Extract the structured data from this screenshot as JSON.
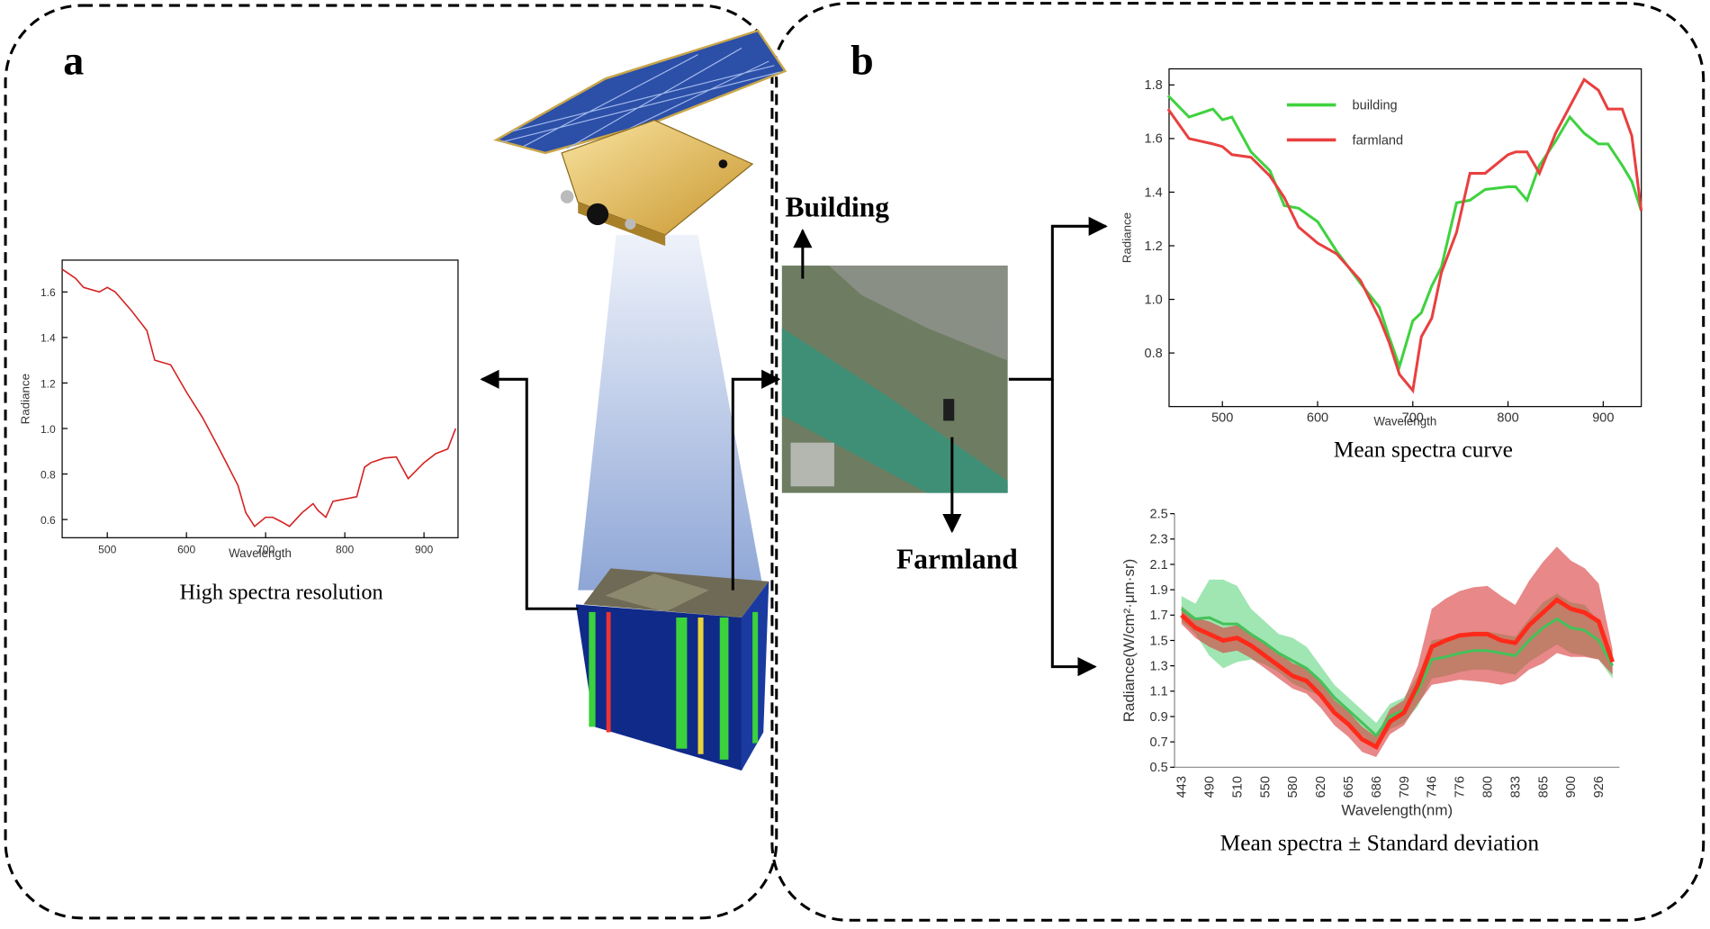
{
  "panel_labels": [
    "a",
    "b"
  ],
  "image_labels": [
    "Building",
    "Farmland"
  ],
  "chart_data": [
    {
      "type": "line",
      "caption": "High spectra resolution",
      "x_label": "Wavelength",
      "y_label": "Radiance",
      "color": "#d42020",
      "x": [
        443,
        460,
        470,
        490,
        500,
        510,
        530,
        550,
        560,
        580,
        600,
        620,
        640,
        665,
        675,
        686,
        700,
        709,
        720,
        730,
        746,
        760,
        766,
        776,
        785,
        800,
        815,
        825,
        833,
        850,
        865,
        880,
        900,
        915,
        930,
        940
      ],
      "values": [
        1.7,
        1.66,
        1.62,
        1.6,
        1.62,
        1.6,
        1.52,
        1.43,
        1.3,
        1.28,
        1.16,
        1.05,
        0.92,
        0.75,
        0.63,
        0.57,
        0.61,
        0.61,
        0.59,
        0.57,
        0.63,
        0.67,
        0.64,
        0.61,
        0.68,
        0.69,
        0.7,
        0.83,
        0.85,
        0.87,
        0.875,
        0.78,
        0.85,
        0.89,
        0.91,
        1.0
      ],
      "xlim": [
        443,
        943
      ],
      "ylim": [
        0.52,
        1.74
      ],
      "xticks": [
        500,
        600,
        700,
        800,
        900
      ],
      "yticks": [
        0.6,
        0.8,
        {
          "value": 1,
          "label": "1.0"
        },
        1.2,
        1.4,
        1.6
      ]
    },
    {
      "type": "line",
      "caption": "Mean spectra curve",
      "x_label": "Wavelength",
      "y_label": "Radiance",
      "legend": "upper-center",
      "x": [
        443,
        465,
        490,
        500,
        510,
        530,
        550,
        565,
        580,
        600,
        620,
        645,
        665,
        675,
        686,
        700,
        709,
        720,
        730,
        746,
        760,
        776,
        800,
        808,
        820,
        833,
        850,
        865,
        880,
        895,
        905,
        920,
        930,
        940
      ],
      "series": [
        {
          "name": "building",
          "color": "#3fd23f",
          "values": [
            1.76,
            1.68,
            1.71,
            1.67,
            1.68,
            1.55,
            1.48,
            1.35,
            1.34,
            1.29,
            1.18,
            1.06,
            0.97,
            0.86,
            0.75,
            0.92,
            0.95,
            1.05,
            1.12,
            1.36,
            1.37,
            1.41,
            1.42,
            1.42,
            1.37,
            1.5,
            1.59,
            1.68,
            1.62,
            1.58,
            1.58,
            1.5,
            1.44,
            1.33
          ]
        },
        {
          "name": "farmland",
          "color": "#e84040",
          "values": [
            1.71,
            1.6,
            1.58,
            1.57,
            1.54,
            1.53,
            1.46,
            1.38,
            1.27,
            1.21,
            1.17,
            1.07,
            0.93,
            0.84,
            0.72,
            0.66,
            0.86,
            0.93,
            1.1,
            1.25,
            1.47,
            1.47,
            1.54,
            1.55,
            1.55,
            1.47,
            1.62,
            1.72,
            1.82,
            1.78,
            1.71,
            1.71,
            1.61,
            1.33
          ]
        }
      ],
      "xlim": [
        444,
        940
      ],
      "ylim": [
        0.6,
        1.86
      ],
      "xticks": [
        500,
        600,
        700,
        800,
        900
      ],
      "yticks": [
        0.8,
        {
          "value": 1,
          "label": "1.0"
        },
        1.2,
        1.4,
        1.6,
        1.8
      ]
    },
    {
      "type": "band",
      "caption": "Mean spectra ± Standard deviation",
      "x_label": "Wavelength(nm)",
      "y_label": "Radiance(W/cm²·μm·sr)",
      "categories": [
        "443",
        null,
        "490",
        null,
        "510",
        null,
        "550",
        null,
        "580",
        null,
        "620",
        null,
        "665",
        null,
        "686",
        null,
        "709",
        null,
        "746",
        null,
        "776",
        null,
        "800",
        null,
        "833",
        null,
        "865",
        null,
        "900",
        null,
        "926",
        null
      ],
      "series": [
        {
          "color": "#44c25a",
          "band_color": "#5fd67f",
          "values": [
            1.75,
            1.67,
            1.68,
            1.63,
            1.63,
            1.55,
            1.48,
            1.4,
            1.34,
            1.28,
            1.18,
            1.05,
            0.95,
            0.85,
            0.75,
            0.9,
            0.95,
            1.1,
            1.35,
            1.37,
            1.4,
            1.42,
            1.42,
            1.4,
            1.38,
            1.5,
            1.6,
            1.67,
            1.6,
            1.58,
            1.5,
            1.3
          ],
          "std": [
            0.1,
            0.12,
            0.3,
            0.35,
            0.3,
            0.2,
            0.17,
            0.15,
            0.18,
            0.17,
            0.12,
            0.1,
            0.1,
            0.1,
            0.1,
            0.1,
            0.1,
            0.12,
            0.15,
            0.15,
            0.15,
            0.15,
            0.15,
            0.15,
            0.15,
            0.17,
            0.2,
            0.2,
            0.2,
            0.2,
            0.15,
            0.1
          ]
        },
        {
          "color": "#ff2a1a",
          "band_color": "#d83838",
          "values": [
            1.7,
            1.6,
            1.55,
            1.5,
            1.52,
            1.46,
            1.38,
            1.3,
            1.22,
            1.18,
            1.07,
            0.93,
            0.84,
            0.72,
            0.66,
            0.86,
            0.93,
            1.15,
            1.45,
            1.5,
            1.54,
            1.55,
            1.55,
            1.5,
            1.48,
            1.62,
            1.72,
            1.82,
            1.75,
            1.72,
            1.65,
            1.33
          ],
          "std": [
            0.07,
            0.08,
            0.1,
            0.1,
            0.1,
            0.1,
            0.1,
            0.1,
            0.1,
            0.1,
            0.1,
            0.1,
            0.1,
            0.1,
            0.08,
            0.1,
            0.1,
            0.15,
            0.3,
            0.33,
            0.35,
            0.37,
            0.38,
            0.35,
            0.3,
            0.35,
            0.4,
            0.42,
            0.38,
            0.35,
            0.3,
            0.1
          ]
        }
      ],
      "ylim": [
        0.5,
        2.5
      ],
      "yticks": [
        0.5,
        0.7,
        0.9,
        1.1,
        1.3,
        1.5,
        1.7,
        1.9,
        2.1,
        2.3,
        2.5
      ]
    }
  ]
}
